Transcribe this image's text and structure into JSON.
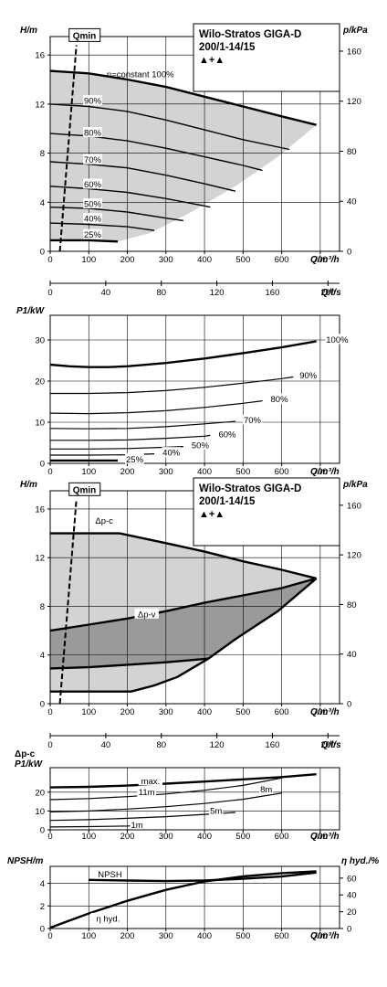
{
  "chart_data": [
    {
      "type": "line",
      "panel": "head-speed",
      "ylabel": "H/m",
      "y2label": "p/kPa",
      "xlabel": "Q/m³/h",
      "x2label": "Q/l/s",
      "title_lines": [
        "Wilo-Stratos GIGA-D",
        "200/1-14/15"
      ],
      "title_symbol": "▲+▲",
      "qmin_label": "Qmin",
      "xlim": [
        0,
        750
      ],
      "ylim": [
        0,
        17.5
      ],
      "xticks": [
        "0",
        "100",
        "200",
        "300",
        "400",
        "500",
        "600",
        "700"
      ],
      "yticks": [
        "0",
        "4",
        "8",
        "12",
        "16"
      ],
      "y2ticks": [
        "0",
        "40",
        "80",
        "120",
        "160"
      ],
      "x2ticks": [
        "0",
        "40",
        "80",
        "120",
        "160",
        "200"
      ],
      "qmin_line": [
        [
          25,
          0
        ],
        [
          68,
          16.8
        ]
      ],
      "series": [
        {
          "label": "n=constant 100%",
          "width": 2.4,
          "points": [
            [
              0,
              14.7
            ],
            [
              100,
              14.5
            ],
            [
              200,
              14.0
            ],
            [
              300,
              13.4
            ],
            [
              400,
              12.6
            ],
            [
              500,
              11.8
            ],
            [
              600,
              11.0
            ],
            [
              690,
              10.3
            ]
          ]
        },
        {
          "label": "90%",
          "width": 1.4,
          "points": [
            [
              0,
              12.0
            ],
            [
              100,
              11.8
            ],
            [
              200,
              11.4
            ],
            [
              300,
              10.7
            ],
            [
              400,
              9.9
            ],
            [
              500,
              9.1
            ],
            [
              620,
              8.3
            ]
          ]
        },
        {
          "label": "80%",
          "width": 1.4,
          "points": [
            [
              0,
              9.6
            ],
            [
              100,
              9.4
            ],
            [
              200,
              9.0
            ],
            [
              300,
              8.4
            ],
            [
              400,
              7.7
            ],
            [
              500,
              7.0
            ],
            [
              550,
              6.6
            ]
          ]
        },
        {
          "label": "70%",
          "width": 1.4,
          "points": [
            [
              0,
              7.3
            ],
            [
              100,
              7.1
            ],
            [
              200,
              6.8
            ],
            [
              300,
              6.2
            ],
            [
              400,
              5.5
            ],
            [
              480,
              4.9
            ]
          ]
        },
        {
          "label": "60%",
          "width": 1.4,
          "points": [
            [
              0,
              5.3
            ],
            [
              100,
              5.1
            ],
            [
              200,
              4.8
            ],
            [
              300,
              4.3
            ],
            [
              400,
              3.7
            ],
            [
              415,
              3.6
            ]
          ]
        },
        {
          "label": "50%",
          "width": 1.4,
          "points": [
            [
              0,
              3.6
            ],
            [
              100,
              3.5
            ],
            [
              200,
              3.2
            ],
            [
              300,
              2.7
            ],
            [
              345,
              2.5
            ]
          ]
        },
        {
          "label": "40%",
          "width": 1.4,
          "points": [
            [
              0,
              2.3
            ],
            [
              100,
              2.2
            ],
            [
              200,
              2.0
            ],
            [
              270,
              1.7
            ]
          ]
        },
        {
          "label": "25%",
          "width": 2.4,
          "points": [
            [
              0,
              0.9
            ],
            [
              100,
              0.9
            ],
            [
              175,
              0.8
            ]
          ]
        }
      ],
      "area_upper": [
        [
          0,
          14.7
        ],
        [
          100,
          14.5
        ],
        [
          200,
          14.0
        ],
        [
          300,
          13.4
        ],
        [
          400,
          12.6
        ],
        [
          500,
          11.8
        ],
        [
          600,
          11.0
        ],
        [
          690,
          10.3
        ]
      ],
      "area_lower": [
        [
          0,
          0.9
        ],
        [
          100,
          0.9
        ],
        [
          175,
          0.8
        ],
        [
          260,
          1.5
        ],
        [
          360,
          3.1
        ],
        [
          480,
          5.3
        ],
        [
          590,
          7.7
        ],
        [
          690,
          10.3
        ]
      ]
    },
    {
      "type": "line",
      "panel": "power-speed",
      "ylabel": "P1/kW",
      "xlabel": "Q/m³/h",
      "xlim": [
        0,
        750
      ],
      "ylim": [
        0,
        36
      ],
      "xticks": [
        "0",
        "100",
        "200",
        "300",
        "400",
        "500",
        "600",
        "700"
      ],
      "yticks": [
        "0",
        "10",
        "20",
        "30"
      ],
      "series": [
        {
          "label": "100%",
          "width": 2.4,
          "points": [
            [
              0,
              24.0
            ],
            [
              50,
              23.6
            ],
            [
              100,
              23.4
            ],
            [
              150,
              23.4
            ],
            [
              200,
              23.6
            ],
            [
              300,
              24.4
            ],
            [
              400,
              25.5
            ],
            [
              500,
              26.8
            ],
            [
              600,
              28.2
            ],
            [
              690,
              29.7
            ]
          ]
        },
        {
          "label": "90%",
          "width": 1.2,
          "points": [
            [
              0,
              17.0
            ],
            [
              100,
              17.0
            ],
            [
              200,
              17.2
            ],
            [
              300,
              17.7
            ],
            [
              400,
              18.5
            ],
            [
              500,
              19.5
            ],
            [
              600,
              20.6
            ],
            [
              630,
              21.0
            ]
          ]
        },
        {
          "label": "80%",
          "width": 1.2,
          "points": [
            [
              0,
              12.2
            ],
            [
              100,
              12.1
            ],
            [
              200,
              12.3
            ],
            [
              300,
              12.8
            ],
            [
              400,
              13.6
            ],
            [
              500,
              14.6
            ],
            [
              550,
              15.2
            ]
          ]
        },
        {
          "label": "70%",
          "width": 1.2,
          "points": [
            [
              0,
              8.5
            ],
            [
              100,
              8.4
            ],
            [
              200,
              8.5
            ],
            [
              300,
              8.9
            ],
            [
              400,
              9.6
            ],
            [
              480,
              10.2
            ]
          ]
        },
        {
          "label": "60%",
          "width": 1.2,
          "points": [
            [
              0,
              5.6
            ],
            [
              100,
              5.6
            ],
            [
              200,
              5.7
            ],
            [
              300,
              6.1
            ],
            [
              400,
              6.6
            ],
            [
              415,
              6.8
            ]
          ]
        },
        {
          "label": "50%",
          "width": 1.2,
          "points": [
            [
              0,
              3.5
            ],
            [
              100,
              3.5
            ],
            [
              200,
              3.6
            ],
            [
              300,
              3.9
            ],
            [
              345,
              4.1
            ]
          ]
        },
        {
          "label": "40%",
          "width": 1.2,
          "points": [
            [
              0,
              2.0
            ],
            [
              100,
              2.0
            ],
            [
              200,
              2.1
            ],
            [
              270,
              2.3
            ]
          ]
        },
        {
          "label": "25%",
          "width": 2.4,
          "points": [
            [
              0,
              0.7
            ],
            [
              100,
              0.7
            ],
            [
              175,
              0.7
            ]
          ]
        }
      ]
    },
    {
      "type": "area",
      "panel": "head-control",
      "ylabel": "H/m",
      "y2label": "p/kPa",
      "xlabel": "Q/m³/h",
      "x2label": "Q/l/s",
      "title_lines": [
        "Wilo-Stratos GIGA-D",
        "200/1-14/15"
      ],
      "title_symbol": "▲+▲",
      "qmin_label": "Qmin",
      "dpc_label": "Δp-c",
      "dpv_label": "Δp-v",
      "xlim": [
        0,
        750
      ],
      "ylim": [
        0,
        17.5
      ],
      "xticks": [
        "0",
        "100",
        "200",
        "300",
        "400",
        "500",
        "600",
        "700"
      ],
      "yticks": [
        "0",
        "4",
        "8",
        "12",
        "16"
      ],
      "y2ticks": [
        "0",
        "40",
        "80",
        "120",
        "160"
      ],
      "x2ticks": [
        "0",
        "40",
        "80",
        "120",
        "160",
        "200"
      ],
      "qmin_line": [
        [
          25,
          0
        ],
        [
          68,
          16.8
        ]
      ],
      "light_region": [
        [
          0,
          14.0
        ],
        [
          180,
          14.0
        ],
        [
          300,
          13.2
        ],
        [
          400,
          12.5
        ],
        [
          500,
          11.7
        ],
        [
          600,
          11.0
        ],
        [
          690,
          10.3
        ],
        [
          590,
          7.6
        ],
        [
          480,
          5.3
        ],
        [
          410,
          3.7
        ],
        [
          330,
          2.2
        ],
        [
          270,
          1.5
        ],
        [
          210,
          1.0
        ],
        [
          0,
          1.0
        ]
      ],
      "dark_region": [
        [
          0,
          6.0
        ],
        [
          100,
          6.5
        ],
        [
          200,
          7.0
        ],
        [
          300,
          7.6
        ],
        [
          400,
          8.3
        ],
        [
          500,
          8.9
        ],
        [
          600,
          9.5
        ],
        [
          690,
          10.3
        ],
        [
          590,
          7.6
        ],
        [
          480,
          5.3
        ],
        [
          410,
          3.7
        ],
        [
          300,
          3.4
        ],
        [
          200,
          3.2
        ],
        [
          100,
          3.0
        ],
        [
          0,
          2.9
        ]
      ],
      "bold_lines": [
        {
          "points": [
            [
              0,
              14.0
            ],
            [
              180,
              14.0
            ],
            [
              300,
              13.2
            ],
            [
              400,
              12.5
            ],
            [
              500,
              11.7
            ],
            [
              600,
              11.0
            ],
            [
              690,
              10.3
            ]
          ]
        },
        {
          "points": [
            [
              0,
              6.0
            ],
            [
              100,
              6.5
            ],
            [
              200,
              7.0
            ],
            [
              300,
              7.6
            ],
            [
              400,
              8.3
            ],
            [
              500,
              8.9
            ],
            [
              600,
              9.5
            ],
            [
              690,
              10.3
            ]
          ]
        },
        {
          "points": [
            [
              0,
              2.9
            ],
            [
              100,
              3.0
            ],
            [
              200,
              3.2
            ],
            [
              300,
              3.4
            ],
            [
              410,
              3.7
            ]
          ]
        },
        {
          "points": [
            [
              690,
              10.3
            ],
            [
              590,
              7.6
            ],
            [
              480,
              5.3
            ],
            [
              410,
              3.7
            ],
            [
              330,
              2.2
            ],
            [
              270,
              1.5
            ],
            [
              210,
              1.0
            ],
            [
              0,
              1.0
            ]
          ]
        }
      ]
    },
    {
      "type": "line",
      "panel": "power-control",
      "ylabel_top": "Δp-c",
      "ylabel": "P1/kW",
      "xlabel": "Q/m³/h",
      "xlim": [
        0,
        750
      ],
      "ylim": [
        0,
        33
      ],
      "xticks": [
        "0",
        "100",
        "200",
        "300",
        "400",
        "500",
        "600",
        "700"
      ],
      "yticks": [
        "0",
        "10",
        "20"
      ],
      "series": [
        {
          "label": "max.",
          "width": 2.4,
          "points": [
            [
              0,
              22.5
            ],
            [
              100,
              22.8
            ],
            [
              200,
              23.5
            ],
            [
              300,
              24.5
            ],
            [
              400,
              25.6
            ],
            [
              500,
              26.8
            ],
            [
              600,
              28.0
            ],
            [
              690,
              29.5
            ]
          ]
        },
        {
          "label": "11m",
          "width": 1.2,
          "points": [
            [
              0,
              16.0
            ],
            [
              100,
              16.6
            ],
            [
              200,
              17.6
            ],
            [
              300,
              19.0
            ],
            [
              400,
              21.0
            ],
            [
              500,
              23.6
            ],
            [
              600,
              27.5
            ]
          ]
        },
        {
          "label": "8m",
          "width": 1.2,
          "points": [
            [
              0,
              9.5
            ],
            [
              100,
              10.0
            ],
            [
              200,
              11.0
            ],
            [
              300,
              12.3
            ],
            [
              400,
              14.0
            ],
            [
              500,
              16.2
            ],
            [
              600,
              19.5
            ]
          ]
        },
        {
          "label": "5m",
          "width": 1.2,
          "points": [
            [
              0,
              5.0
            ],
            [
              100,
              5.4
            ],
            [
              200,
              6.1
            ],
            [
              300,
              7.0
            ],
            [
              400,
              8.2
            ],
            [
              480,
              9.2
            ]
          ]
        },
        {
          "label": "1m",
          "width": 1.2,
          "points": [
            [
              0,
              1.5
            ],
            [
              100,
              1.7
            ],
            [
              200,
              2.0
            ],
            [
              210,
              2.1
            ]
          ]
        }
      ]
    },
    {
      "type": "line",
      "panel": "npsh-efficiency",
      "ylabel": "NPSH/m",
      "y2label": "η hyd./%",
      "xlabel": "Q/m³/h",
      "xlim": [
        0,
        750
      ],
      "ylim": [
        0,
        5.5
      ],
      "y2lim": [
        0,
        74
      ],
      "xticks": [
        "0",
        "100",
        "200",
        "300",
        "400",
        "500",
        "600",
        "700"
      ],
      "yticks": [
        "0",
        "2",
        "4"
      ],
      "y2ticks": [
        "0",
        "20",
        "40",
        "60"
      ],
      "series": [
        {
          "label": "NPSH",
          "axis": "left",
          "width": 2.4,
          "points": [
            [
              100,
              4.3
            ],
            [
              200,
              4.25
            ],
            [
              300,
              4.2
            ],
            [
              400,
              4.25
            ],
            [
              500,
              4.4
            ],
            [
              600,
              4.6
            ],
            [
              690,
              4.95
            ]
          ]
        },
        {
          "label": "η hyd.",
          "axis": "right",
          "width": 2.4,
          "points": [
            [
              0,
              1
            ],
            [
              100,
              18
            ],
            [
              200,
              33
            ],
            [
              300,
              46
            ],
            [
              400,
              56
            ],
            [
              500,
              62
            ],
            [
              600,
              66
            ],
            [
              690,
              68
            ]
          ]
        }
      ]
    }
  ]
}
